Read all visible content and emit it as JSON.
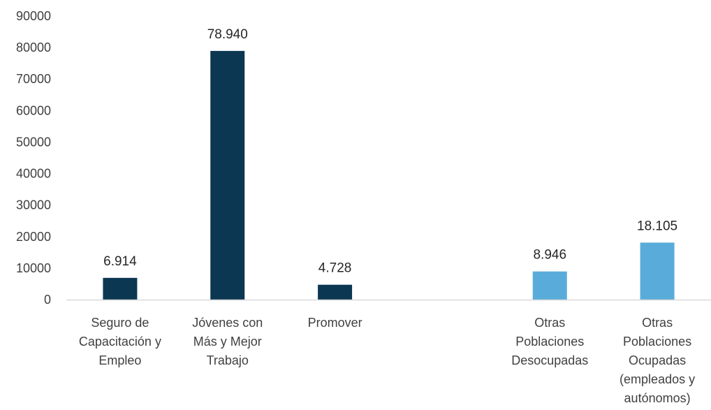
{
  "chart_data": {
    "type": "bar",
    "title": "",
    "xlabel": "",
    "ylabel": "",
    "ylim": [
      0,
      90000
    ],
    "yticks": [
      0,
      10000,
      20000,
      30000,
      40000,
      50000,
      60000,
      70000,
      80000,
      90000
    ],
    "grid": false,
    "legend": "none",
    "categories": [
      [
        "Seguro de",
        "Capacitación y",
        "Empleo"
      ],
      [
        "Jóvenes con",
        "Más y Mejor",
        "Trabajo"
      ],
      [
        "Promover"
      ],
      [],
      [
        "Otras",
        "Poblaciones",
        "Desocupadas"
      ],
      [
        "Otras",
        "Poblaciones",
        "Ocupadas",
        "(empleados y",
        "autónomos)"
      ]
    ],
    "values": [
      6914,
      78940,
      4728,
      null,
      8946,
      18105
    ],
    "data_labels": [
      "6.914",
      "78.940",
      "4.728",
      "",
      "8.946",
      "18.105"
    ],
    "colors": [
      "#0c3752",
      "#0c3752",
      "#0c3752",
      null,
      "#59acd9",
      "#59acd9"
    ],
    "axis_color": "#d9d9d9"
  }
}
